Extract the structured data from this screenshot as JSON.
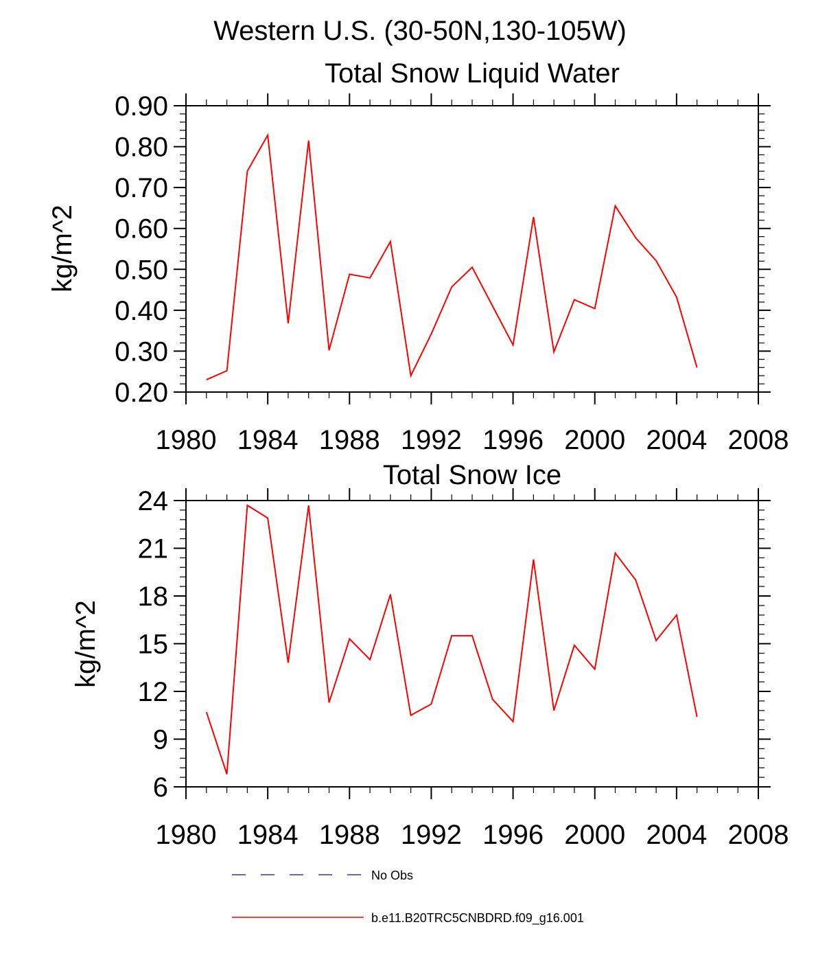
{
  "figure": {
    "title": "Western U.S. (30-50N,130-105W)"
  },
  "legend": {
    "entries": [
      {
        "name": "No Obs",
        "color": "#3333cc",
        "dash": "dashed"
      },
      {
        "name": "b.e11.B20TRC5CNBDRD.f09_g16.001",
        "color": "#ff0000",
        "dash": "solid"
      }
    ]
  },
  "chart_data": [
    {
      "type": "line",
      "title": "Total Snow Liquid Water",
      "xlabel": "",
      "ylabel": "kg/m^2",
      "xlim": [
        1980,
        2008
      ],
      "ylim": [
        0.2,
        0.9
      ],
      "xticks": [
        1980,
        1984,
        1988,
        1992,
        1996,
        2000,
        2004,
        2008
      ],
      "yticks": [
        "0.20",
        "0.30",
        "0.40",
        "0.50",
        "0.60",
        "0.70",
        "0.80",
        "0.90"
      ],
      "grid": false,
      "series": [
        {
          "name": "b.e11.B20TRC5CNBDRD.f09_g16.001",
          "color": "#ff0000",
          "x": [
            1981,
            1982,
            1983,
            1984,
            1985,
            1986,
            1987,
            1988,
            1989,
            1990,
            1991,
            1992,
            1993,
            1994,
            1995,
            1996,
            1997,
            1998,
            1999,
            2000,
            2001,
            2002,
            2003,
            2004,
            2005
          ],
          "y": [
            0.23,
            0.252,
            0.74,
            0.828,
            0.368,
            0.815,
            0.302,
            0.488,
            0.479,
            0.568,
            0.24,
            0.342,
            0.457,
            0.505,
            0.41,
            0.315,
            0.628,
            0.298,
            0.426,
            0.404,
            0.655,
            0.577,
            0.521,
            0.432,
            0.26
          ]
        }
      ]
    },
    {
      "type": "line",
      "title": "Total Snow Ice",
      "xlabel": "",
      "ylabel": "kg/m^2",
      "xlim": [
        1980,
        2008
      ],
      "ylim": [
        6,
        24
      ],
      "xticks": [
        1980,
        1984,
        1988,
        1992,
        1996,
        2000,
        2004,
        2008
      ],
      "yticks": [
        "6",
        "9",
        "12",
        "15",
        "18",
        "21",
        "24"
      ],
      "grid": false,
      "series": [
        {
          "name": "b.e11.B20TRC5CNBDRD.f09_g16.001",
          "color": "#ff0000",
          "x": [
            1981,
            1982,
            1983,
            1984,
            1985,
            1986,
            1987,
            1988,
            1989,
            1990,
            1991,
            1992,
            1993,
            1994,
            1995,
            1996,
            1997,
            1998,
            1999,
            2000,
            2001,
            2002,
            2003,
            2004,
            2005
          ],
          "y": [
            10.7,
            6.8,
            23.7,
            22.9,
            13.8,
            23.7,
            11.3,
            15.3,
            14.0,
            18.1,
            10.5,
            11.2,
            15.5,
            15.5,
            11.5,
            10.1,
            20.3,
            10.8,
            14.9,
            13.4,
            20.7,
            19.0,
            15.2,
            16.8,
            10.4
          ]
        }
      ]
    }
  ]
}
